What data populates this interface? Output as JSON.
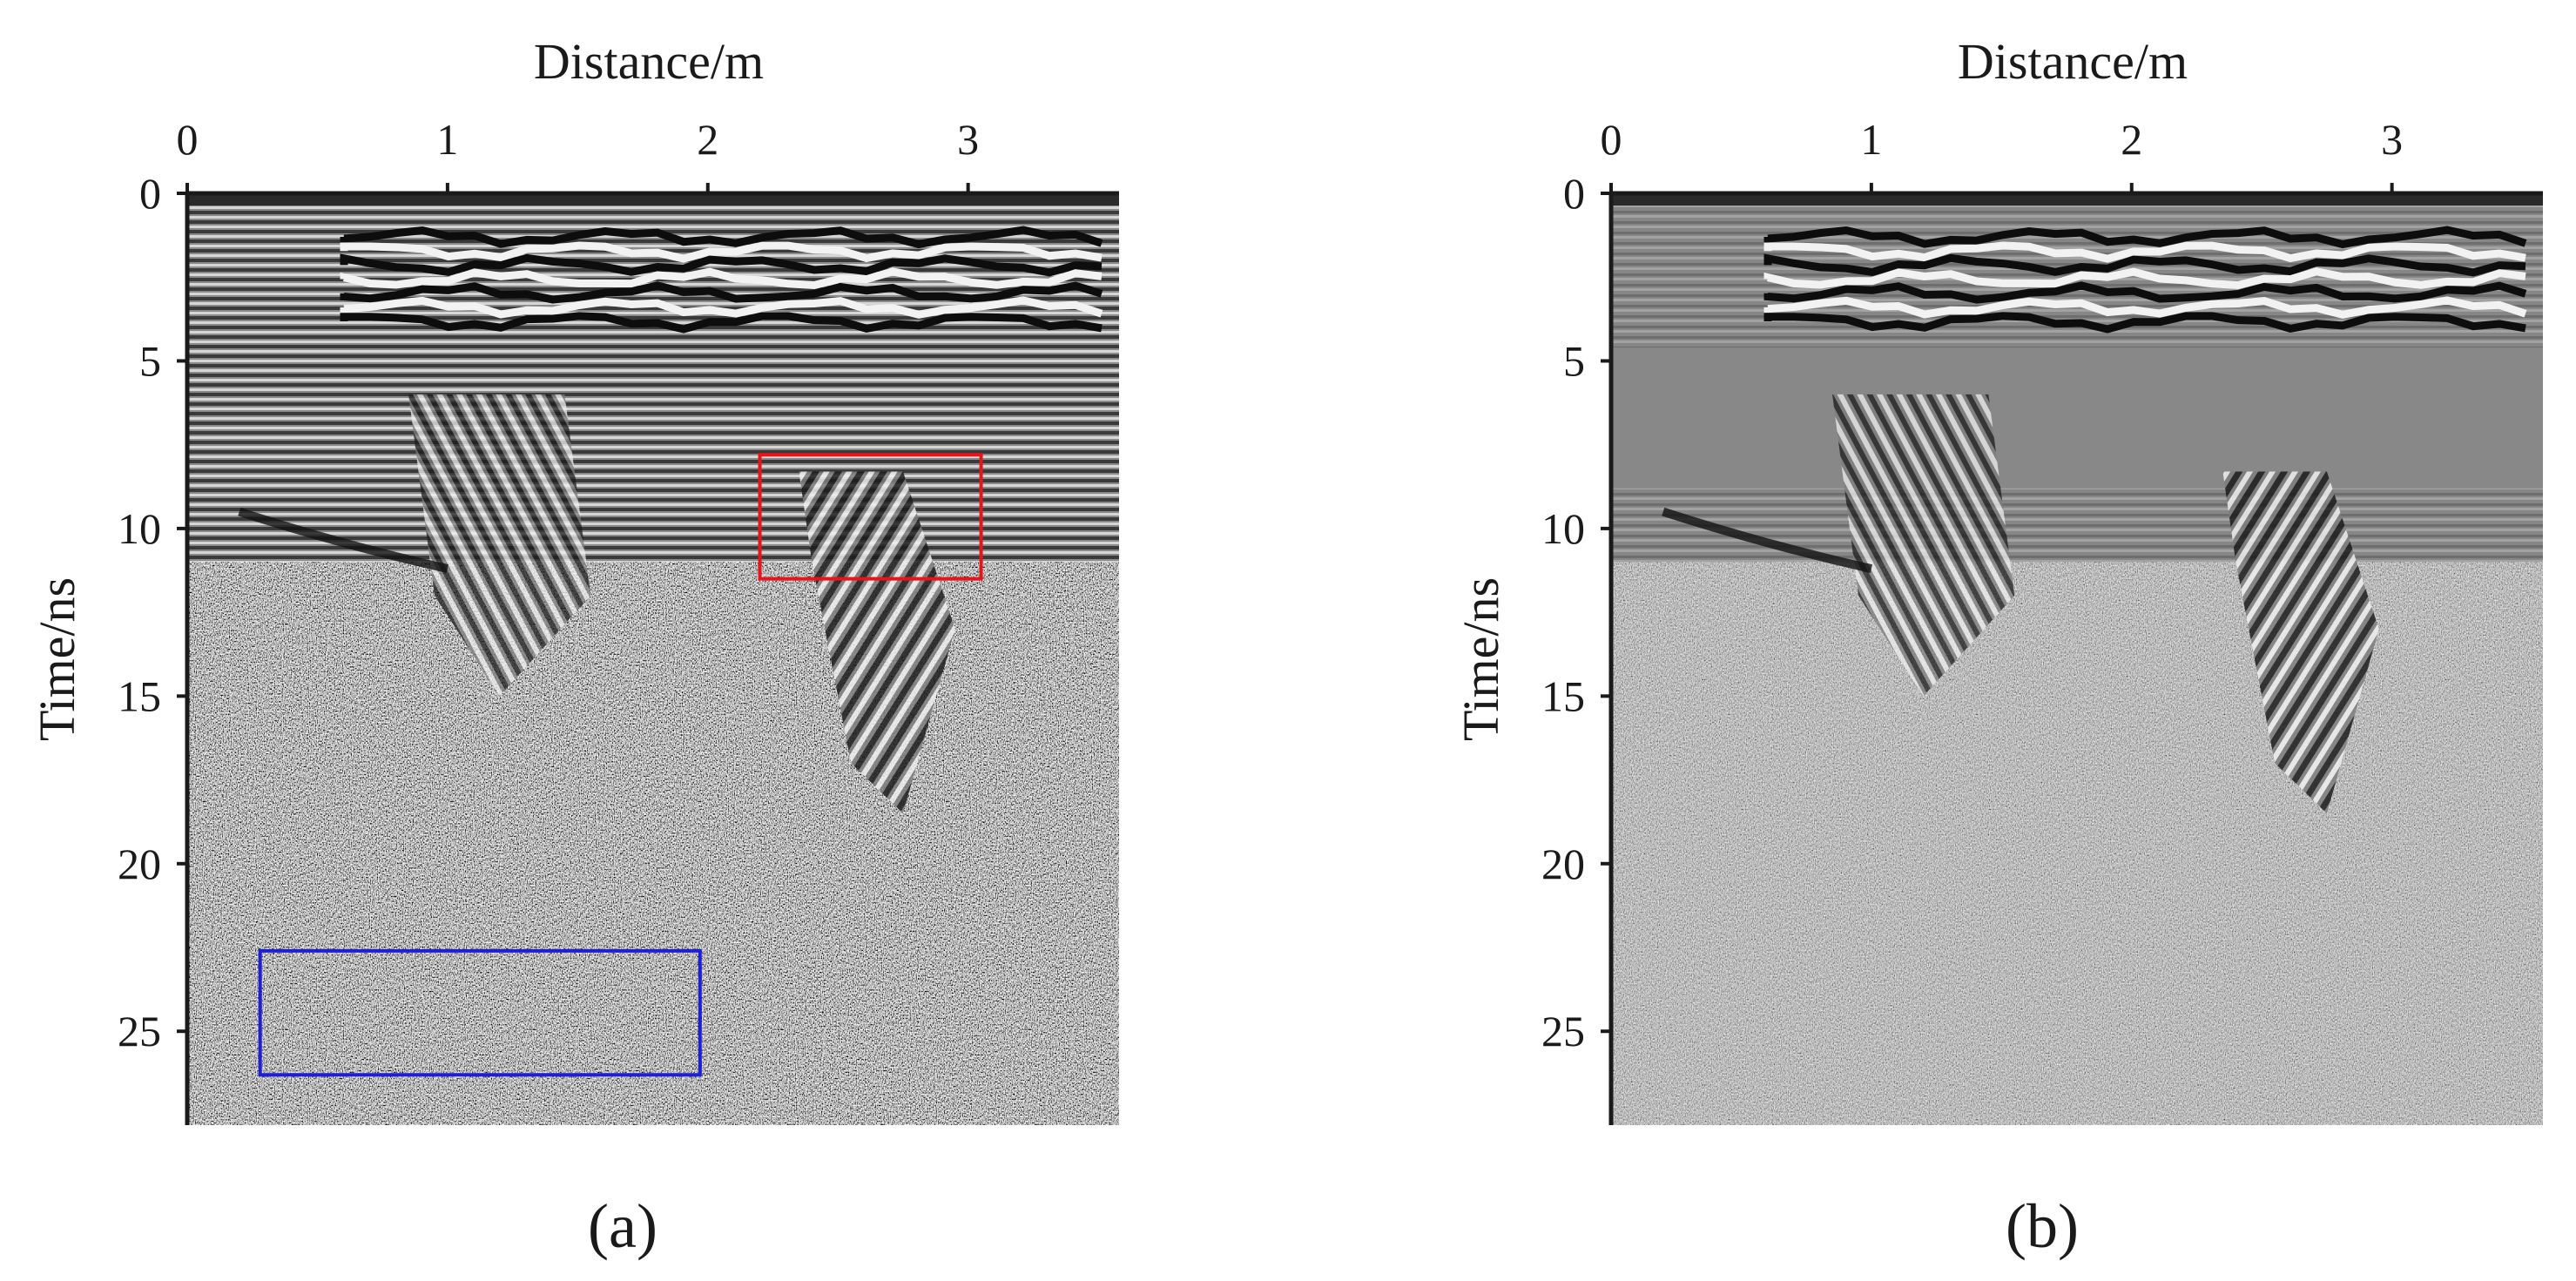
{
  "panels": [
    {
      "id": "a",
      "label": "(a)",
      "highlight_boxes": [
        {
          "name": "red-box",
          "color": "#e8141c",
          "x": [
            2.2,
            3.05
          ],
          "y": [
            7.8,
            11.5
          ]
        },
        {
          "name": "blue-box",
          "color": "#1e1ed2",
          "x": [
            0.28,
            1.97
          ],
          "y": [
            22.6,
            26.3
          ]
        }
      ]
    },
    {
      "id": "b",
      "label": "(b)",
      "highlight_boxes": []
    }
  ],
  "chart_data": [
    {
      "type": "heatmap",
      "title": "",
      "xlabel": "Distance/m",
      "ylabel": "Time/ns",
      "xlim": [
        0,
        3.58
      ],
      "ylim": [
        0,
        27.8
      ],
      "y_inverted": true,
      "x_axis_position": "top",
      "x_ticks": [
        0,
        1,
        2,
        3
      ],
      "y_ticks": [
        0,
        5,
        10,
        15,
        20,
        25
      ],
      "colormap": "grayscale",
      "legend": "none",
      "grid": false
    },
    {
      "type": "heatmap",
      "title": "",
      "xlabel": "Distance/m",
      "ylabel": "Time/ns",
      "xlim": [
        0,
        3.58
      ],
      "ylim": [
        0,
        27.8
      ],
      "y_inverted": true,
      "x_axis_position": "top",
      "x_ticks": [
        0,
        1,
        2,
        3
      ],
      "y_ticks": [
        0,
        5,
        10,
        15,
        20,
        25
      ],
      "colormap": "grayscale",
      "legend": "none",
      "grid": false
    }
  ]
}
